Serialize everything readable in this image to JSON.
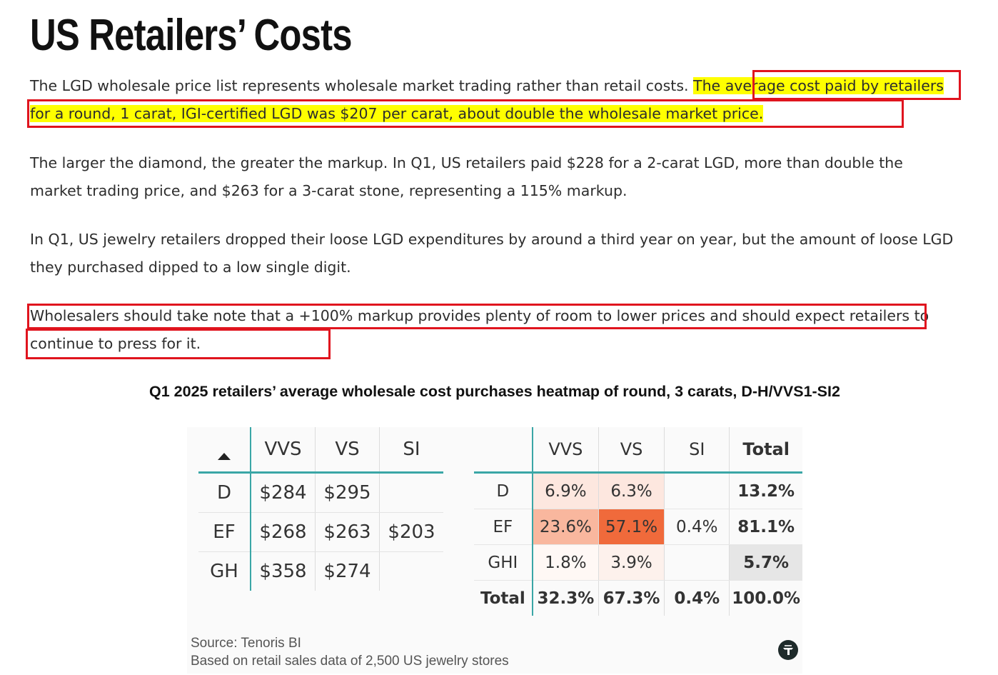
{
  "title": "US Retailers’ Costs",
  "paragraphs": {
    "p1_plain": "The LGD wholesale price list represents wholesale market trading rather than retail costs.",
    "p1_highlight": "The average cost paid by retailers for a round, 1 carat, IGI-certified LGD was $207 per carat, about double the wholesale market price.",
    "p2": "The larger the diamond, the greater the markup. In Q1, US retailers paid $228 for a 2-carat LGD, more than double the market trading price, and $263 for a 3-carat stone, representing a 115% markup.",
    "p3": "In Q1, US jewelry retailers dropped their loose LGD expenditures by around a third year on year, but the amount of loose LGD they purchased dipped to a low single digit.",
    "p4": "Wholesalers should take note that a +100% markup provides plenty of room to lower prices and should expect retailers to continue to press for it."
  },
  "highlight_color": "#ffff00",
  "annotation_color": "#e0141e",
  "chart_title": "Q1 2025 retailers’ average wholesale cost purchases heatmap of round, 3 carats, D-H/VVS1-SI2",
  "chart_data": [
    {
      "type": "table",
      "sort_icon": "sort-up-icon",
      "columns": [
        "VVS",
        "VS",
        "SI"
      ],
      "rows": [
        {
          "label": "D",
          "values": [
            "$284",
            "$295",
            ""
          ]
        },
        {
          "label": "EF",
          "values": [
            "$268",
            "$263",
            "$203"
          ]
        },
        {
          "label": "GH",
          "values": [
            "$358",
            "$274",
            ""
          ]
        }
      ]
    },
    {
      "type": "heatmap",
      "columns": [
        "VVS",
        "VS",
        "SI",
        "Total"
      ],
      "rows": [
        {
          "label": "D",
          "values": [
            "6.9%",
            "6.3%",
            "",
            "13.2%"
          ],
          "colors": [
            "#fde7df",
            "#fde7df",
            "",
            ""
          ]
        },
        {
          "label": "EF",
          "values": [
            "23.6%",
            "57.1%",
            "0.4%",
            "81.1%"
          ],
          "colors": [
            "#f9b79e",
            "#f06a3b",
            "",
            ""
          ]
        },
        {
          "label": "GHI",
          "values": [
            "1.8%",
            "3.9%",
            "",
            "5.7%"
          ],
          "colors": [
            "#fff8f5",
            "#fdf1ec",
            "",
            "#e6e6e6"
          ]
        },
        {
          "label": "Total",
          "values": [
            "32.3%",
            "67.3%",
            "0.4%",
            "100.0%"
          ],
          "colors": [
            "",
            "",
            "",
            ""
          ]
        }
      ]
    }
  ],
  "source": {
    "line1": "Source: Tenoris BI",
    "line2": "Based on retail sales data of 2,500 US jewelry stores"
  },
  "logo_icon": "tenoris-logo-icon"
}
